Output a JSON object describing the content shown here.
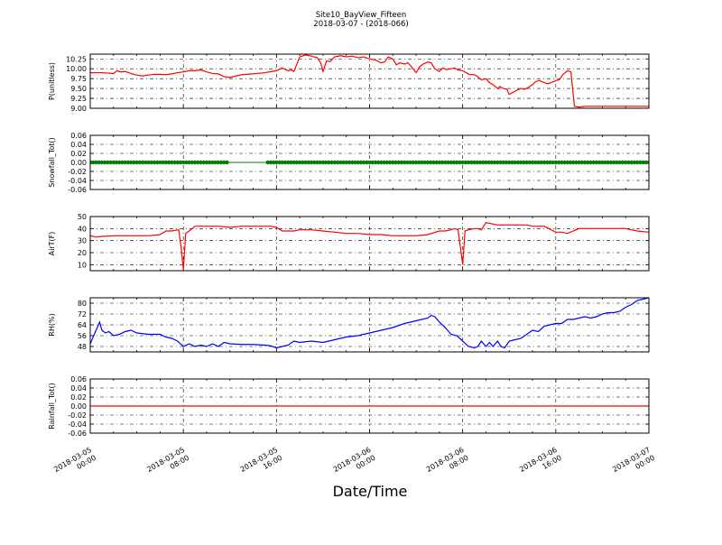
{
  "figure": {
    "title": "Site10_BayView_Fifteen",
    "subtitle": "2018-03-07 - (2018-066)",
    "xlabel": "Date/Time"
  },
  "chart_data": [
    {
      "type": "line",
      "ylabel": "P(unitless)",
      "ylim": [
        9.0,
        10.37
      ],
      "yticks": [
        9.0,
        9.25,
        9.5,
        9.75,
        10.0,
        10.25
      ],
      "ytick_labels": [
        "9.00",
        "9.25",
        "9.50",
        "9.75",
        "10.00",
        "10.25"
      ],
      "xlim_hours": [
        0,
        48
      ],
      "grid": true,
      "series": [
        {
          "color": "#ff0000",
          "x": [
            0,
            1,
            2,
            2.3,
            2.6,
            3,
            3.5,
            4,
            4.5,
            5,
            5.5,
            6,
            6.5,
            7,
            7.5,
            8,
            8.5,
            9,
            9.5,
            10,
            10.5,
            11,
            11.5,
            12,
            13,
            14,
            15,
            16,
            16.5,
            17,
            17.3,
            17.5,
            18,
            18.5,
            19,
            19.5,
            19.8,
            20,
            20.3,
            20.6,
            21,
            21.5,
            22,
            22.5,
            23,
            23.5,
            24,
            24.5,
            25,
            25.3,
            25.6,
            26,
            26.3,
            26.6,
            27,
            27.3,
            27.6,
            28,
            28.3,
            28.6,
            29,
            29.3,
            29.6,
            30,
            30.3,
            30.6,
            31,
            31.3,
            31.6,
            32,
            32.3,
            32.6,
            33,
            33.3,
            33.6,
            34,
            34.3,
            34.6,
            35,
            35.2,
            35.5,
            35.8,
            36,
            36.3,
            36.6,
            37,
            37.3,
            37.6,
            38,
            38.3,
            38.6,
            39,
            39.3,
            39.6,
            40,
            40.3,
            40.6,
            41,
            41.3,
            41.6,
            42,
            42.3,
            42.6,
            43,
            43.3,
            43.6,
            44,
            44.2,
            44.6,
            44.9,
            45,
            45.3,
            45.6,
            46,
            46.5,
            47,
            47.5,
            48
          ],
          "y": [
            9.9,
            9.9,
            9.88,
            9.95,
            9.92,
            9.93,
            9.88,
            9.84,
            9.82,
            9.84,
            9.86,
            9.86,
            9.85,
            9.87,
            9.9,
            9.92,
            9.95,
            9.95,
            9.97,
            9.92,
            9.88,
            9.87,
            9.8,
            9.78,
            9.85,
            9.87,
            9.9,
            9.95,
            10.02,
            9.95,
            9.97,
            9.93,
            10.3,
            10.35,
            10.32,
            10.28,
            10.15,
            9.93,
            10.2,
            10.18,
            10.3,
            10.33,
            10.3,
            10.32,
            10.28,
            10.3,
            10.25,
            10.22,
            10.15,
            10.17,
            10.3,
            10.25,
            10.1,
            10.15,
            10.12,
            10.15,
            10.05,
            9.9,
            10.05,
            10.12,
            10.17,
            10.15,
            10.0,
            9.93,
            10.02,
            9.98,
            10.0,
            10.02,
            9.97,
            9.95,
            9.9,
            9.85,
            9.85,
            9.8,
            9.72,
            9.75,
            9.65,
            9.6,
            9.5,
            9.55,
            9.5,
            9.48,
            9.35,
            9.4,
            9.45,
            9.5,
            9.48,
            9.52,
            9.6,
            9.68,
            9.7,
            9.65,
            9.62,
            9.65,
            9.7,
            9.72,
            9.85,
            9.95,
            9.92,
            9.05,
            9.03,
            9.04,
            9.05,
            9.05,
            9.05,
            9.05,
            9.05,
            9.05,
            9.05,
            9.05,
            9.05,
            9.05,
            9.05,
            9.05,
            9.05,
            9.05,
            9.05,
            9.05
          ]
        }
      ]
    },
    {
      "type": "scatter",
      "ylabel": "Snowfall_Tot()",
      "ylim": [
        -0.06,
        0.06
      ],
      "yticks": [
        -0.06,
        -0.04,
        -0.02,
        0.0,
        0.02,
        0.04,
        0.06
      ],
      "ytick_labels": [
        "-0.06",
        "-0.04",
        "-0.02",
        "0.00",
        "0.02",
        "0.04",
        "0.06"
      ],
      "xlim_hours": [
        0,
        48
      ],
      "grid": true,
      "gap_hours": [
        11.8,
        15.2
      ],
      "series": [
        {
          "color": "#008000",
          "value": 0.0
        }
      ]
    },
    {
      "type": "line",
      "ylabel": "AirT(F)",
      "ylim": [
        5,
        50
      ],
      "yticks": [
        10,
        20,
        30,
        40,
        50
      ],
      "ytick_labels": [
        "10",
        "20",
        "30",
        "40",
        "50"
      ],
      "xlim_hours": [
        0,
        48
      ],
      "grid": true,
      "series": [
        {
          "color": "#ff0000",
          "x": [
            0,
            0.5,
            1,
            2,
            3,
            4,
            5,
            6,
            6.5,
            7,
            7.3,
            7.6,
            7.8,
            8,
            8.2,
            8.5,
            9,
            10,
            11,
            12,
            13,
            14,
            15,
            15.5,
            16,
            16.5,
            17,
            17.5,
            18,
            19,
            20,
            21,
            22,
            23,
            24,
            25,
            26,
            27,
            28,
            29,
            30,
            30.5,
            31,
            31.3,
            31.6,
            31.8,
            32,
            32.2,
            32.5,
            33,
            33.3,
            33.6,
            34,
            35,
            36,
            37,
            37.5,
            38,
            38.5,
            39,
            40,
            40.5,
            41,
            42,
            43,
            44,
            45,
            46,
            46.5,
            47,
            48
          ],
          "y": [
            34,
            33,
            33.5,
            34,
            34,
            34,
            34,
            35,
            38,
            38,
            38.5,
            39,
            25,
            6,
            36,
            38,
            42,
            42,
            42,
            41,
            42,
            42,
            42,
            42,
            41,
            38,
            38,
            38,
            39,
            39,
            38,
            37,
            36,
            36,
            35,
            35,
            34,
            34,
            34,
            35,
            38,
            38,
            39,
            40,
            39,
            25,
            10,
            38,
            39,
            40,
            40,
            39,
            45,
            43,
            43,
            43,
            43,
            42,
            42,
            42,
            37,
            37,
            36,
            40,
            40,
            40,
            40,
            40,
            39,
            38,
            37
          ]
        }
      ]
    },
    {
      "type": "line",
      "ylabel": "RH(%)",
      "ylim": [
        44,
        84
      ],
      "yticks": [
        48,
        56,
        64,
        72,
        80
      ],
      "ytick_labels": [
        "48",
        "56",
        "64",
        "72",
        "80"
      ],
      "xlim_hours": [
        0,
        48
      ],
      "grid": true,
      "series": [
        {
          "color": "#0000ff",
          "x": [
            0,
            0.3,
            0.6,
            0.8,
            1,
            1.3,
            1.6,
            2,
            2.5,
            3,
            3.5,
            4,
            5,
            6,
            6.5,
            7,
            7.5,
            8,
            8.5,
            9,
            9.5,
            10,
            10.5,
            11,
            11.5,
            12,
            13,
            14,
            15,
            15.5,
            16,
            16.5,
            17,
            17.5,
            18,
            19,
            20,
            21,
            22,
            23,
            24,
            25,
            26,
            27,
            28,
            29,
            29.3,
            29.6,
            30,
            30.5,
            31,
            31.5,
            32,
            32.5,
            33,
            33.3,
            33.6,
            34,
            34.3,
            34.6,
            35,
            35.3,
            35.6,
            36,
            36.5,
            37,
            37.5,
            38,
            38.5,
            39,
            39.5,
            40,
            40.5,
            41,
            41.5,
            42,
            42.5,
            43,
            43.5,
            44,
            44.5,
            45,
            45.5,
            46,
            46.5,
            47,
            47.5,
            48
          ],
          "y": [
            50,
            56,
            62,
            66,
            60,
            58,
            59,
            56,
            57,
            59,
            60,
            58,
            57,
            57,
            55,
            54,
            52,
            48,
            50,
            48,
            49,
            48,
            50,
            48,
            51,
            50,
            49.5,
            49.5,
            49,
            48.5,
            47,
            48,
            49,
            52,
            51,
            52,
            51,
            53,
            55,
            56,
            58,
            60,
            62,
            65,
            67,
            69,
            71,
            70,
            66,
            62,
            57,
            56,
            52,
            48,
            47,
            48,
            52,
            48,
            51,
            48,
            52,
            48,
            47,
            52,
            53,
            54,
            57,
            60,
            59,
            63,
            64,
            65,
            65,
            68,
            68,
            69,
            70,
            69,
            70,
            72,
            73,
            73,
            74,
            77,
            79,
            82,
            83,
            84
          ]
        }
      ]
    },
    {
      "type": "line",
      "ylabel": "Rainfall_Tot()",
      "ylim": [
        -0.06,
        0.06
      ],
      "yticks": [
        -0.06,
        -0.04,
        -0.02,
        0.0,
        0.02,
        0.04,
        0.06
      ],
      "ytick_labels": [
        "-0.06",
        "-0.04",
        "-0.02",
        "0.00",
        "0.02",
        "0.04",
        "0.06"
      ],
      "xlim_hours": [
        0,
        48
      ],
      "grid": true,
      "series": [
        {
          "color": "#ff0000",
          "x": [
            0,
            48
          ],
          "y": [
            0.0,
            0.0
          ]
        }
      ]
    }
  ],
  "x_axis": {
    "ticks_hours": [
      0,
      8,
      16,
      24,
      32,
      40,
      48
    ],
    "tick_labels": [
      [
        "2018-03-05",
        "00:00"
      ],
      [
        "2018-03-05",
        "08:00"
      ],
      [
        "2018-03-05",
        "16:00"
      ],
      [
        "2018-03-06",
        "00:00"
      ],
      [
        "2018-03-06",
        "08:00"
      ],
      [
        "2018-03-06",
        "16:00"
      ],
      [
        "2018-03-07",
        "00:00"
      ]
    ]
  }
}
